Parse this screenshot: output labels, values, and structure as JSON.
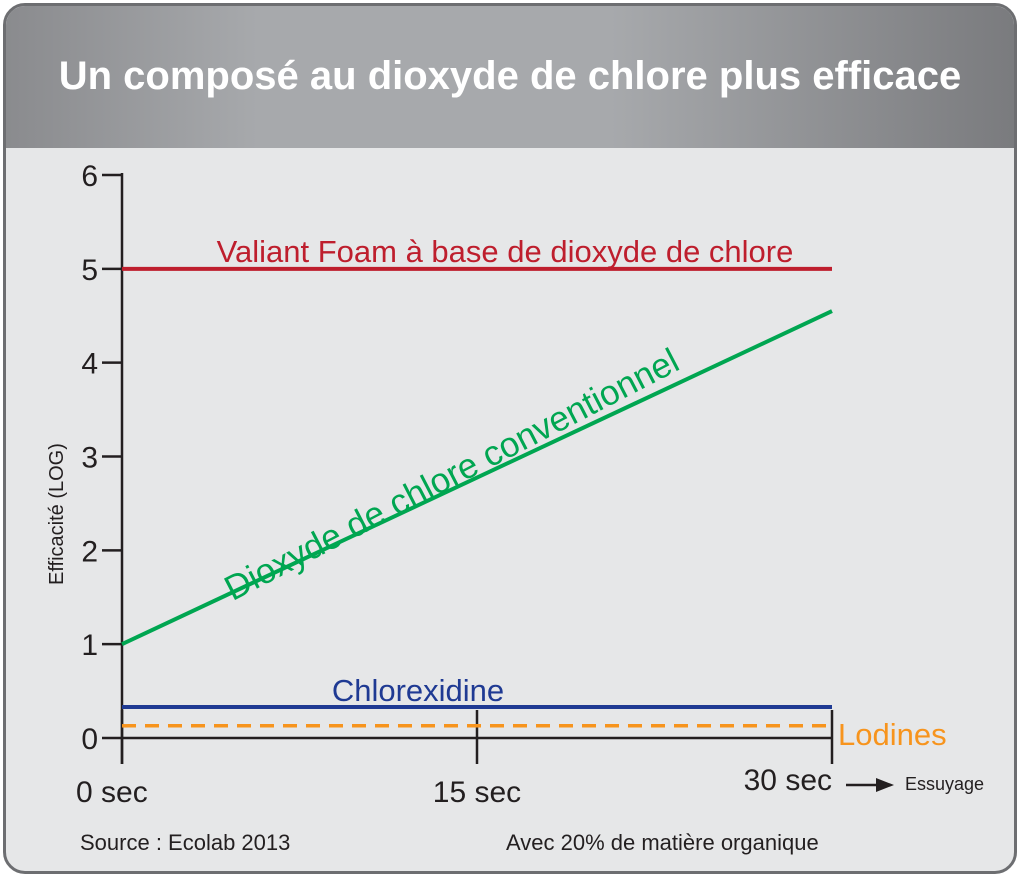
{
  "title": "Un composé au dioxyde de chlore plus efficace",
  "footer": {
    "source": "Source : Ecolab 2013",
    "note": "Avec 20% de matière organique"
  },
  "colors": {
    "valiant": "#be1e2d",
    "conventional": "#00a651",
    "chlorexidine": "#1f3a93",
    "lodines": "#f7941d",
    "axis": "#231f20"
  },
  "chart_data": {
    "type": "line",
    "title": "Un composé au dioxyde de chlore plus efficace",
    "ylabel": "Efficacité (LOG)",
    "xlabel": "Essuyage",
    "ylim": [
      0,
      6
    ],
    "xlim": [
      0,
      30
    ],
    "x_ticks": [
      {
        "value": 0,
        "label": "0 sec"
      },
      {
        "value": 15,
        "label": "15 sec"
      },
      {
        "value": 30,
        "label": "30 sec"
      }
    ],
    "y_ticks": [
      0,
      1,
      2,
      3,
      4,
      5,
      6
    ],
    "series": [
      {
        "name": "Valiant Foam à base de dioxyde de chlore",
        "color": "#be1e2d",
        "style": "solid",
        "points": [
          [
            0,
            5.0
          ],
          [
            30,
            5.0
          ]
        ]
      },
      {
        "name": "Dioxyde de chlore conventionnel",
        "color": "#00a651",
        "style": "solid",
        "points": [
          [
            0,
            1.0
          ],
          [
            30,
            4.55
          ]
        ]
      },
      {
        "name": "Chlorexidine",
        "color": "#1f3a93",
        "style": "solid",
        "points": [
          [
            0,
            0.33
          ],
          [
            30,
            0.33
          ]
        ]
      },
      {
        "name": "Lodines",
        "color": "#f7941d",
        "style": "dashed",
        "points": [
          [
            0,
            0.13
          ],
          [
            30,
            0.13
          ]
        ]
      }
    ]
  }
}
